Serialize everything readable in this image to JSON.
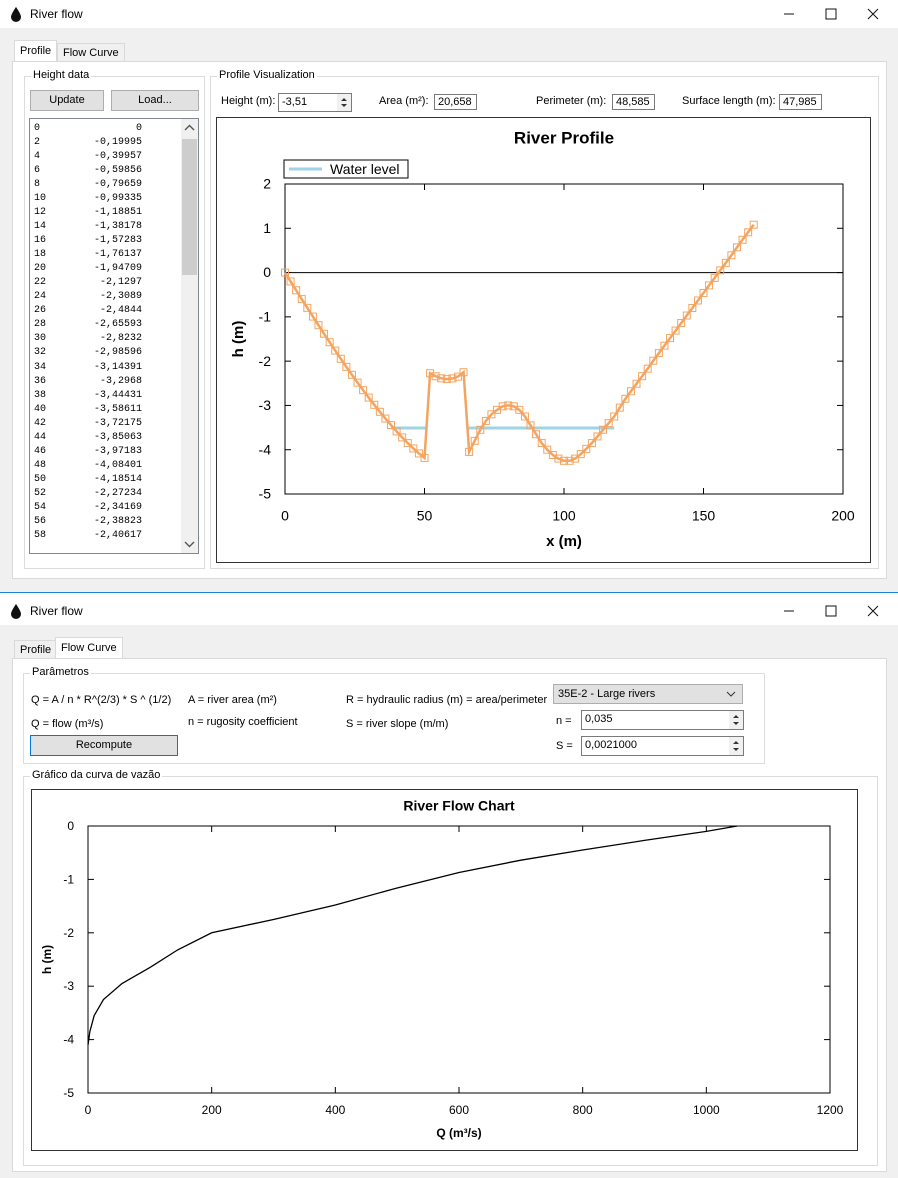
{
  "windows": [
    {
      "title": "River flow",
      "tabs": [
        "Profile",
        "Flow Curve"
      ]
    },
    {
      "title": "River flow",
      "tabs": [
        "Profile",
        "Flow Curve"
      ]
    }
  ],
  "profile_tab": {
    "height_group": "Height data",
    "update_button": "Update",
    "load_button": "Load...",
    "height_list": [
      [
        "0",
        "0"
      ],
      [
        "2",
        "-0,19995"
      ],
      [
        "4",
        "-0,39957"
      ],
      [
        "6",
        "-0,59856"
      ],
      [
        "8",
        "-0,79659"
      ],
      [
        "10",
        "-0,99335"
      ],
      [
        "12",
        "-1,18851"
      ],
      [
        "14",
        "-1,38178"
      ],
      [
        "16",
        "-1,57283"
      ],
      [
        "18",
        "-1,76137"
      ],
      [
        "20",
        "-1,94709"
      ],
      [
        "22",
        "-2,1297"
      ],
      [
        "24",
        "-2,3089"
      ],
      [
        "26",
        "-2,4844"
      ],
      [
        "28",
        "-2,65593"
      ],
      [
        "30",
        "-2,8232"
      ],
      [
        "32",
        "-2,98596"
      ],
      [
        "34",
        "-3,14391"
      ],
      [
        "36",
        "-3,2968"
      ],
      [
        "38",
        "-3,44431"
      ],
      [
        "40",
        "-3,58611"
      ],
      [
        "42",
        "-3,72175"
      ],
      [
        "44",
        "-3,85063"
      ],
      [
        "46",
        "-3,97183"
      ],
      [
        "48",
        "-4,08401"
      ],
      [
        "50",
        "-4,18514"
      ],
      [
        "52",
        "-2,27234"
      ],
      [
        "54",
        "-2,34169"
      ],
      [
        "56",
        "-2,38823"
      ],
      [
        "58",
        "-2,40617"
      ]
    ],
    "visualization_group": "Profile Visualization",
    "height_label": "Height (m):",
    "height_value": "-3,51",
    "area_label": "Area (m²):",
    "area_value": "20,658",
    "perimeter_label": "Perimeter (m):",
    "perimeter_value": "48,585",
    "surface_label": "Surface length (m):",
    "surface_value": "47,985"
  },
  "flow_tab": {
    "params_group": "Parâmetros",
    "formula": "Q = A / n * R^(2/3) * S ^ (1/2)",
    "a_desc": "A = river area (m²)",
    "r_desc": "R = hydraulic radius (m) = area/perimeter",
    "q_desc": "Q = flow (m³/s)",
    "n_desc": "n = rugosity coefficient",
    "s_desc": "S = river slope (m/m)",
    "recompute_button": "Recompute",
    "river_type": "35E-2 - Large rivers",
    "n_label": "n =",
    "n_value": "0,035",
    "s_label": "S =",
    "s_value": "0,0021000",
    "chart_group": "Gráfico da curva de vazão"
  },
  "chart_data": [
    {
      "type": "line",
      "title": "River Profile",
      "x_label": "x (m)",
      "y_label": "h (m)",
      "x": [
        0,
        2,
        4,
        6,
        8,
        10,
        12,
        14,
        16,
        18,
        20,
        22,
        24,
        26,
        28,
        30,
        32,
        34,
        36,
        38,
        40,
        42,
        44,
        46,
        48,
        50,
        52,
        54,
        56,
        58,
        60,
        62,
        64,
        66,
        68,
        70,
        72,
        74,
        76,
        78,
        80,
        82,
        84,
        86,
        88,
        90,
        92,
        94,
        96,
        98,
        100,
        102,
        104,
        106,
        108,
        110,
        112,
        114,
        116,
        118,
        120,
        122,
        124,
        126,
        128,
        130,
        132,
        134,
        136,
        138,
        140,
        142,
        144,
        146,
        148,
        150,
        152,
        154,
        156,
        158,
        160,
        162,
        164,
        166,
        168
      ],
      "series": [
        {
          "color": "#f4a460",
          "marker": "square",
          "values": [
            0,
            -0.19995,
            -0.39957,
            -0.59856,
            -0.79659,
            -0.99335,
            -1.18851,
            -1.38178,
            -1.57283,
            -1.76137,
            -1.94709,
            -2.1297,
            -2.3089,
            -2.4844,
            -2.65593,
            -2.8232,
            -2.98596,
            -3.14391,
            -3.2968,
            -3.44431,
            -3.58611,
            -3.72175,
            -3.85063,
            -3.97183,
            -4.08401,
            -4.18514,
            -2.27234,
            -2.34169,
            -2.38823,
            -2.40617,
            -2.39,
            -2.35,
            -2.25,
            -4.05,
            -3.8,
            -3.55,
            -3.35,
            -3.2,
            -3.1,
            -3.02,
            -3.0,
            -3.02,
            -3.1,
            -3.25,
            -3.45,
            -3.65,
            -3.85,
            -4.0,
            -4.12,
            -4.2,
            -4.25,
            -4.25,
            -4.2,
            -4.1,
            -3.98,
            -3.85,
            -3.7,
            -3.55,
            -3.4,
            -3.25,
            -3.05,
            -2.85,
            -2.68,
            -2.51,
            -2.34,
            -2.17,
            -1.99,
            -1.82,
            -1.65,
            -1.48,
            -1.31,
            -1.14,
            -0.97,
            -0.8,
            -0.63,
            -0.46,
            -0.29,
            -0.12,
            0.05,
            0.22,
            0.39,
            0.57,
            0.74,
            0.91,
            1.08
          ]
        },
        {
          "name": "Water level",
          "color": "#9fd3e6",
          "x": [
            38,
            51,
            58,
            65,
            118
          ],
          "values": [
            -3.51,
            -3.51,
            null,
            -3.51,
            -3.51
          ]
        }
      ],
      "xlim": [
        0,
        200
      ],
      "xticks": [
        0,
        50,
        100,
        150,
        200
      ],
      "ylim": [
        -5,
        2
      ],
      "yticks": [
        -5,
        -4,
        -3,
        -2,
        -1,
        0,
        1,
        2
      ],
      "legend": "top-left"
    },
    {
      "type": "line",
      "title": "River Flow Chart",
      "x_label": "Q (m³/s)",
      "y_label": "h (m)",
      "x": [
        0,
        3,
        10,
        25,
        55,
        100,
        145,
        200,
        300,
        400,
        500,
        600,
        700,
        800,
        900,
        1000,
        1050
      ],
      "series": [
        {
          "color": "#000000",
          "values": [
            -4.1,
            -3.85,
            -3.55,
            -3.25,
            -2.95,
            -2.65,
            -2.32,
            -2.0,
            -1.75,
            -1.48,
            -1.16,
            -0.87,
            -0.64,
            -0.45,
            -0.27,
            -0.1,
            0
          ]
        }
      ],
      "xlim": [
        0,
        1200
      ],
      "xticks": [
        0,
        200,
        400,
        600,
        800,
        1000,
        1200
      ],
      "ylim": [
        -5,
        0
      ],
      "yticks": [
        -5,
        -4,
        -3,
        -2,
        -1,
        0
      ]
    }
  ]
}
